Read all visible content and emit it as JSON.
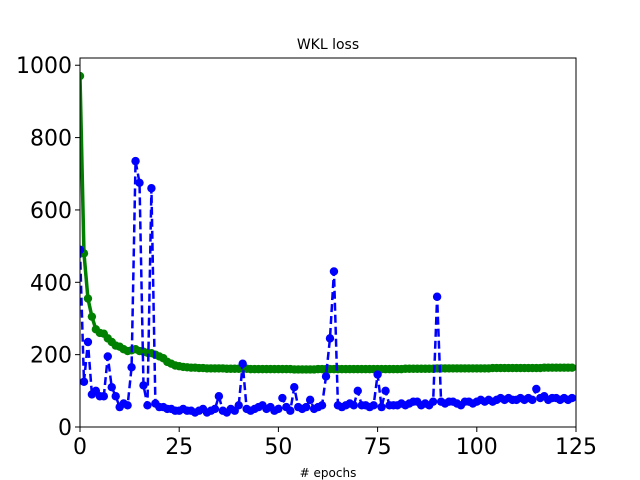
{
  "chart_data": {
    "type": "line",
    "title": "WKL loss",
    "xlabel": "# epochs",
    "ylabel": "",
    "xlim": [
      0,
      125
    ],
    "ylim": [
      0,
      1020
    ],
    "xticks": [
      0,
      25,
      50,
      75,
      100,
      125
    ],
    "yticks": [
      0,
      200,
      400,
      600,
      800,
      1000
    ],
    "grid": false,
    "series": [
      {
        "color": "#008000",
        "line_style": "solid",
        "marker": "circle",
        "x": [
          0,
          1,
          2,
          3,
          4,
          5,
          6,
          7,
          8,
          9,
          10,
          11,
          12,
          13,
          14,
          15,
          16,
          17,
          18,
          19,
          20,
          21,
          22,
          23,
          24,
          25,
          26,
          27,
          28,
          29,
          30,
          31,
          32,
          33,
          34,
          35,
          36,
          37,
          38,
          39,
          40,
          41,
          42,
          43,
          44,
          45,
          46,
          47,
          48,
          49,
          50,
          51,
          52,
          53,
          54,
          55,
          56,
          57,
          58,
          59,
          60,
          61,
          62,
          63,
          64,
          65,
          66,
          67,
          68,
          69,
          70,
          71,
          72,
          73,
          74,
          75,
          76,
          77,
          78,
          79,
          80,
          81,
          82,
          83,
          84,
          85,
          86,
          87,
          88,
          89,
          90,
          91,
          92,
          93,
          94,
          95,
          96,
          97,
          98,
          99,
          100,
          101,
          102,
          103,
          104,
          105,
          106,
          107,
          108,
          109,
          110,
          111,
          112,
          113,
          114,
          115,
          116,
          117,
          118,
          119,
          120,
          121,
          122,
          123,
          124
        ],
        "y": [
          970,
          480,
          355,
          305,
          270,
          260,
          258,
          245,
          235,
          225,
          222,
          215,
          210,
          212,
          215,
          210,
          208,
          205,
          204,
          200,
          195,
          190,
          180,
          175,
          170,
          168,
          166,
          165,
          164,
          164,
          163,
          163,
          162,
          162,
          162,
          162,
          162,
          161,
          161,
          161,
          161,
          161,
          161,
          160,
          160,
          160,
          160,
          160,
          160,
          160,
          160,
          160,
          160,
          160,
          159,
          159,
          159,
          159,
          159,
          159,
          160,
          160,
          160,
          160,
          160,
          160,
          160,
          160,
          160,
          160,
          160,
          160,
          160,
          160,
          160,
          160,
          160,
          160,
          160,
          160,
          160,
          160,
          161,
          161,
          161,
          161,
          161,
          161,
          161,
          161,
          162,
          162,
          162,
          162,
          162,
          162,
          162,
          162,
          162,
          162,
          162,
          162,
          162,
          162,
          163,
          163,
          163,
          163,
          163,
          163,
          163,
          163,
          163,
          163,
          163,
          163,
          163,
          164,
          164,
          164,
          164,
          164,
          164,
          164,
          164
        ]
      },
      {
        "color": "#0000ff",
        "line_style": "dashed",
        "marker": "circle",
        "x": [
          0,
          1,
          2,
          3,
          4,
          5,
          6,
          7,
          8,
          9,
          10,
          11,
          12,
          13,
          14,
          15,
          16,
          17,
          18,
          19,
          20,
          21,
          22,
          23,
          24,
          25,
          26,
          27,
          28,
          29,
          30,
          31,
          32,
          33,
          34,
          35,
          36,
          37,
          38,
          39,
          40,
          41,
          42,
          43,
          44,
          45,
          46,
          47,
          48,
          49,
          50,
          51,
          52,
          53,
          54,
          55,
          56,
          57,
          58,
          59,
          60,
          61,
          62,
          63,
          64,
          65,
          66,
          67,
          68,
          69,
          70,
          71,
          72,
          73,
          74,
          75,
          76,
          77,
          78,
          79,
          80,
          81,
          82,
          83,
          84,
          85,
          86,
          87,
          88,
          89,
          90,
          91,
          92,
          93,
          94,
          95,
          96,
          97,
          98,
          99,
          100,
          101,
          102,
          103,
          104,
          105,
          106,
          107,
          108,
          109,
          110,
          111,
          112,
          113,
          114,
          115,
          116,
          117,
          118,
          119,
          120,
          121,
          122,
          123,
          124
        ],
        "y": [
          490,
          125,
          235,
          90,
          100,
          85,
          85,
          195,
          110,
          85,
          55,
          65,
          60,
          165,
          735,
          675,
          115,
          60,
          660,
          65,
          55,
          55,
          50,
          50,
          45,
          45,
          50,
          45,
          45,
          40,
          45,
          50,
          40,
          45,
          50,
          85,
          45,
          40,
          50,
          45,
          60,
          175,
          50,
          45,
          50,
          55,
          60,
          50,
          55,
          45,
          50,
          80,
          55,
          45,
          110,
          55,
          50,
          55,
          75,
          50,
          55,
          60,
          140,
          245,
          430,
          60,
          55,
          60,
          65,
          60,
          100,
          60,
          60,
          55,
          60,
          145,
          55,
          100,
          60,
          60,
          60,
          65,
          60,
          65,
          70,
          70,
          60,
          65,
          60,
          70,
          360,
          70,
          65,
          70,
          70,
          65,
          60,
          70,
          70,
          65,
          70,
          75,
          70,
          75,
          70,
          75,
          80,
          75,
          80,
          75,
          75,
          80,
          75,
          80,
          75,
          105,
          80,
          85,
          75,
          80,
          80,
          75,
          80,
          75,
          80
        ]
      }
    ]
  }
}
